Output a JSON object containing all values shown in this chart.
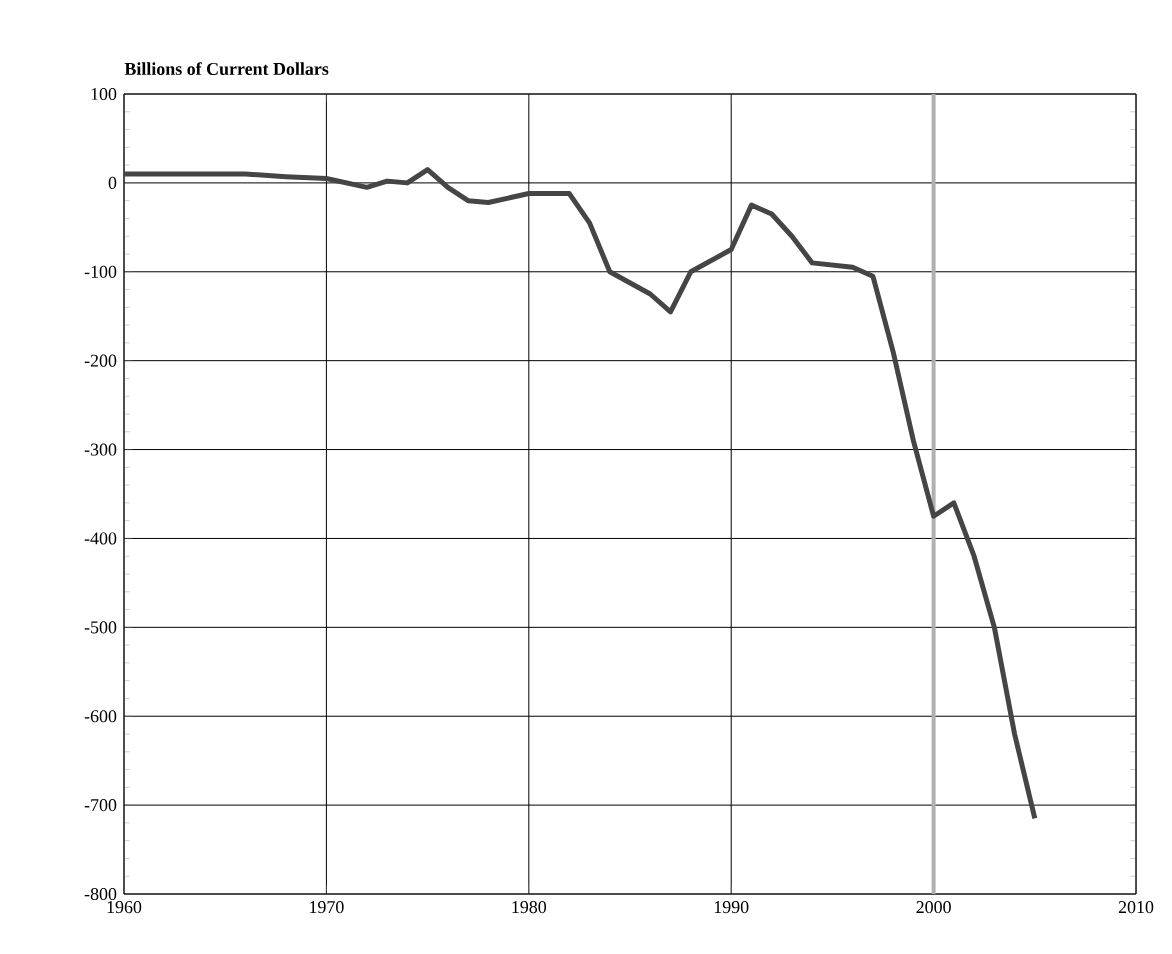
{
  "chart_data": {
    "type": "line",
    "title": "Billions of Current Dollars",
    "x": [
      1960,
      1962,
      1964,
      1966,
      1968,
      1970,
      1972,
      1973,
      1974,
      1975,
      1976,
      1977,
      1978,
      1980,
      1982,
      1983,
      1984,
      1986,
      1987,
      1988,
      1990,
      1991,
      1992,
      1993,
      1994,
      1996,
      1997,
      1998,
      1999,
      2000,
      2001,
      2002,
      2003,
      2004,
      2005
    ],
    "series": [
      {
        "color": "#454545",
        "values": [
          10,
          10,
          10,
          10,
          7,
          5,
          -5,
          2,
          0,
          15,
          -5,
          -20,
          -22,
          -12,
          -12,
          -45,
          -100,
          -125,
          -145,
          -100,
          -75,
          -25,
          -35,
          -60,
          -90,
          -95,
          -105,
          -190,
          -290,
          -375,
          -360,
          -420,
          -500,
          -620,
          -715
        ]
      }
    ],
    "xlim": [
      1960,
      2010
    ],
    "xticks": [
      1960,
      1970,
      1980,
      1990,
      2000,
      2010
    ],
    "ylim": [
      -800,
      100
    ],
    "yticks": [
      -800,
      -700,
      -600,
      -500,
      -400,
      -300,
      -200,
      -100,
      0,
      100
    ],
    "grid": true,
    "marker": "none",
    "line_style": "solid",
    "ref_lines": [
      {
        "axis": "x",
        "value": 2000,
        "color": "#b0b0b0"
      }
    ]
  }
}
